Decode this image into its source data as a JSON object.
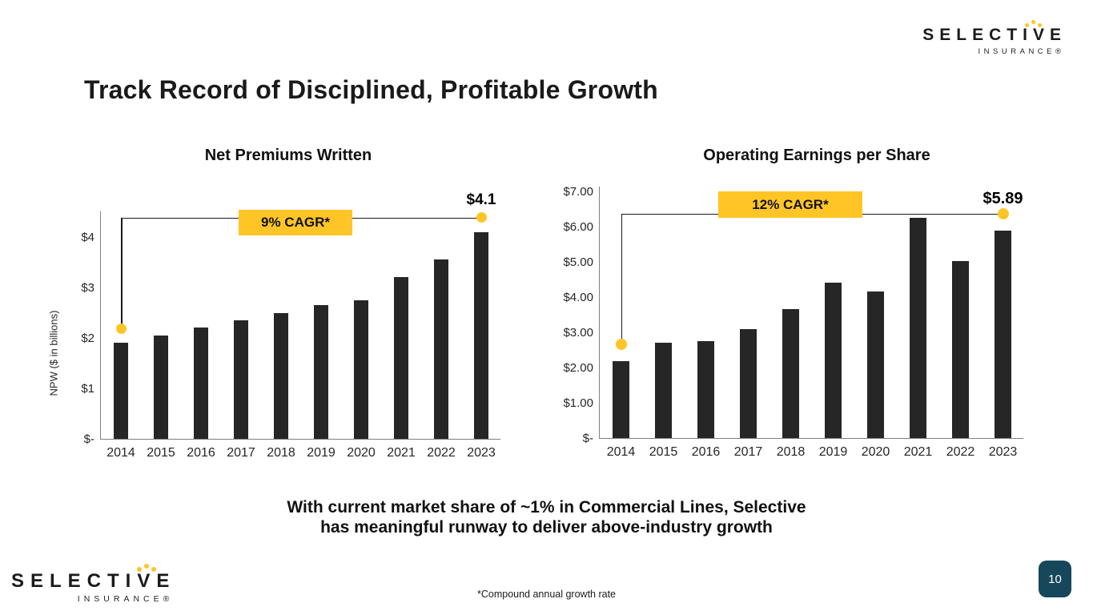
{
  "slide": {
    "title": "Track Record of Disciplined, Profitable Growth",
    "message_line1": "With current market share of ~1% in Commercial Lines, Selective",
    "message_line2": "has meaningful runway to deliver above-industry growth",
    "footnote": "*Compound annual growth rate",
    "page_number": "10"
  },
  "logo": {
    "wordmark": "SELECTIVE",
    "subtext": "INSURANCE®"
  },
  "colors": {
    "bar": "#262626",
    "accent_yellow": "#FFC527",
    "badge_blue": "#16475A",
    "axis_gray": "#808080"
  },
  "chart_data": [
    {
      "type": "bar",
      "title": "Net Premiums Written",
      "ylabel": "NPW ($ in billions)",
      "xlabel": "",
      "categories": [
        "2014",
        "2015",
        "2016",
        "2017",
        "2018",
        "2019",
        "2020",
        "2021",
        "2022",
        "2023"
      ],
      "values": [
        1.9,
        2.05,
        2.2,
        2.35,
        2.5,
        2.65,
        2.75,
        3.2,
        3.55,
        4.1
      ],
      "ylim": [
        0,
        4.5
      ],
      "yticks": [
        {
          "value": 0,
          "label": "$-"
        },
        {
          "value": 1,
          "label": "$1"
        },
        {
          "value": 2,
          "label": "$2"
        },
        {
          "value": 3,
          "label": "$3"
        },
        {
          "value": 4,
          "label": "$4"
        }
      ],
      "grid": false,
      "legend": false,
      "annotation": {
        "cagr_label": "9% CAGR*",
        "end_label": "$4.1"
      }
    },
    {
      "type": "bar",
      "title": "Operating Earnings per Share",
      "ylabel": "",
      "xlabel": "",
      "categories": [
        "2014",
        "2015",
        "2016",
        "2017",
        "2018",
        "2019",
        "2020",
        "2021",
        "2022",
        "2023"
      ],
      "values": [
        2.18,
        2.7,
        2.75,
        3.1,
        3.65,
        4.4,
        4.15,
        6.25,
        5.03,
        5.89
      ],
      "ylim": [
        0,
        7
      ],
      "yticks": [
        {
          "value": 0,
          "label": "$-"
        },
        {
          "value": 1,
          "label": "$1.00"
        },
        {
          "value": 2,
          "label": "$2.00"
        },
        {
          "value": 3,
          "label": "$3.00"
        },
        {
          "value": 4,
          "label": "$4.00"
        },
        {
          "value": 5,
          "label": "$5.00"
        },
        {
          "value": 6,
          "label": "$6.00"
        },
        {
          "value": 7,
          "label": "$7.00"
        }
      ],
      "grid": false,
      "legend": false,
      "annotation": {
        "cagr_label": "12% CAGR*",
        "end_label": "$5.89"
      }
    }
  ]
}
